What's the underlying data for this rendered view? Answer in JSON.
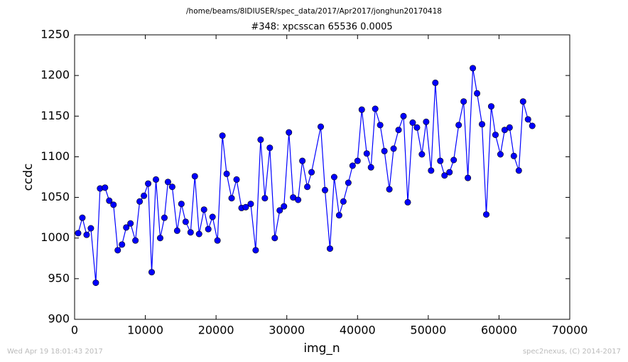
{
  "chart_data": {
    "type": "line",
    "suptitle": "/home/beams/8IDIUSER/spec_data/2017/Apr2017/jonghun20170418",
    "title": "#348: xpcsscan 65536 0.0005",
    "xlabel": "img_n",
    "ylabel": "ccdc",
    "footer_left": "Wed Apr 19 18:01:43 2017",
    "footer_right": "spec2nexus, (C) 2014-2017",
    "x": [
      500,
      1100,
      1700,
      2300,
      3000,
      3600,
      4300,
      4900,
      5500,
      6100,
      6700,
      7300,
      7900,
      8600,
      9200,
      9800,
      10400,
      10900,
      11500,
      12100,
      12700,
      13200,
      13800,
      14500,
      15100,
      15700,
      16400,
      17000,
      17600,
      18300,
      18900,
      19500,
      20200,
      20900,
      21500,
      22200,
      22900,
      23600,
      24200,
      24900,
      25600,
      26300,
      26900,
      27600,
      28300,
      29000,
      29600,
      30300,
      30900,
      31600,
      32200,
      32900,
      33500,
      34800,
      35400,
      36100,
      36700,
      37400,
      38000,
      38700,
      39300,
      40000,
      40600,
      41300,
      41900,
      42500,
      43200,
      43800,
      44500,
      45100,
      45800,
      46500,
      47100,
      47800,
      48400,
      49100,
      49700,
      50400,
      51000,
      51700,
      52300,
      53000,
      53600,
      54300,
      55000,
      55600,
      56300,
      56900,
      57600,
      58200,
      58900,
      59500,
      60200,
      60800,
      61500,
      62100,
      62800,
      63400,
      64100,
      64700
    ],
    "series": [
      {
        "color": "#0000ff",
        "marker_color": "#0000ff",
        "values": [
          1006,
          1025,
          1004,
          1012,
          945,
          1061,
          1062,
          1046,
          1041,
          985,
          992,
          1013,
          1018,
          997,
          1045,
          1052,
          1067,
          958,
          1072,
          1000,
          1025,
          1069,
          1063,
          1009,
          1042,
          1020,
          1007,
          1076,
          1005,
          1035,
          1011,
          1026,
          997,
          1126,
          1079,
          1049,
          1072,
          1037,
          1038,
          1042,
          985,
          1121,
          1049,
          1111,
          1000,
          1034,
          1039,
          1130,
          1050,
          1047,
          1095,
          1063,
          1081,
          1137,
          1059,
          987,
          1075,
          1028,
          1045,
          1068,
          1089,
          1095,
          1158,
          1104,
          1087,
          1159,
          1139,
          1107,
          1060,
          1110,
          1133,
          1150,
          1044,
          1142,
          1136,
          1103,
          1143,
          1083,
          1191,
          1095,
          1077,
          1081,
          1096,
          1139,
          1168,
          1074,
          1209,
          1178,
          1140,
          1029,
          1162,
          1127,
          1103,
          1133,
          1136,
          1101,
          1083,
          1168,
          1146,
          1138
        ]
      }
    ],
    "xlim": [
      0,
      70000
    ],
    "xticks": [
      0,
      10000,
      20000,
      30000,
      40000,
      50000,
      60000,
      70000
    ],
    "ylim": [
      900,
      1250
    ],
    "yticks": [
      900,
      950,
      1000,
      1050,
      1100,
      1150,
      1200,
      1250
    ]
  }
}
